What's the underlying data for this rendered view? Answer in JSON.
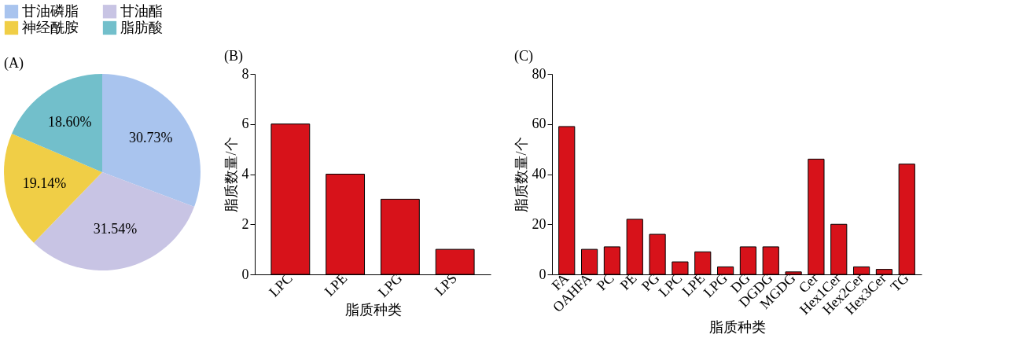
{
  "chart_data": [
    {
      "type": "pie",
      "title": "(A)",
      "categories": [
        "甘油磷脂",
        "甘油酯",
        "神经酰胺",
        "脂肪酸"
      ],
      "values": [
        30.73,
        31.54,
        19.14,
        18.6
      ],
      "colors": [
        "#a9c4ee",
        "#c8c4e4",
        "#f0ce46",
        "#72bfcb"
      ],
      "value_labels": [
        "30.73%",
        "31.54%",
        "19.14%",
        "18.60%"
      ],
      "legend": "top left"
    },
    {
      "type": "bar",
      "title": "(B)",
      "categories": [
        "LPC",
        "LPE",
        "LPG",
        "LPS"
      ],
      "values": [
        6,
        4,
        3,
        1
      ],
      "color": "#d7121a",
      "xlabel": "脂质种类",
      "ylabel": "脂质数量/个",
      "ylim": [
        0,
        8
      ],
      "yticks": [
        0,
        2,
        4,
        6,
        8
      ],
      "grid": false
    },
    {
      "type": "bar",
      "title": "(C)",
      "categories": [
        "FA",
        "OAHFA",
        "PC",
        "PE",
        "PG",
        "LPC",
        "LPE",
        "LPG",
        "DG",
        "DGDG",
        "MGDG",
        "Cer",
        "Hex1Cer",
        "Hex2Cer",
        "Hex3Cer",
        "TG"
      ],
      "values": [
        59,
        10,
        11,
        22,
        16,
        5,
        9,
        3,
        11,
        11,
        1,
        46,
        20,
        3,
        2,
        44
      ],
      "color": "#d7121a",
      "xlabel": "脂质种类",
      "ylabel": "脂质数量/个",
      "ylim": [
        0,
        80
      ],
      "yticks": [
        0,
        20,
        40,
        60,
        80
      ],
      "grid": false
    }
  ]
}
